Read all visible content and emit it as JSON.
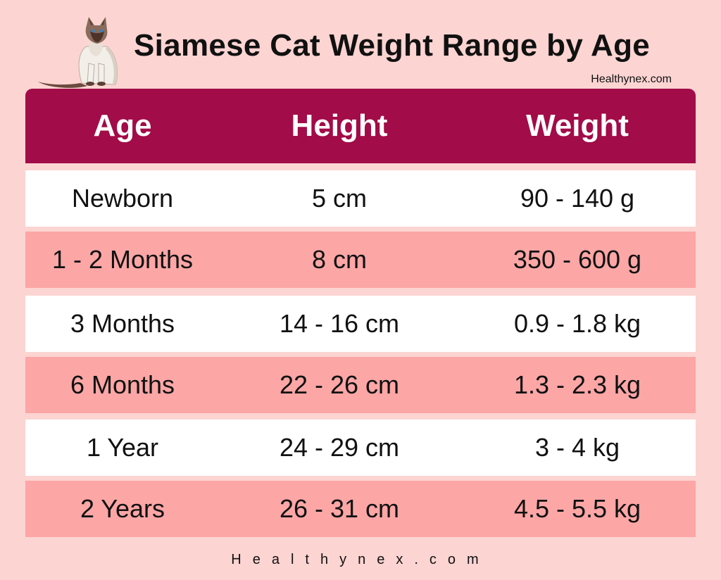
{
  "title": "Siamese Cat Weight Range by Age",
  "credit": "Healthynex.com",
  "table": {
    "headers": [
      "Age",
      "Height",
      "Weight"
    ],
    "rows": [
      [
        "Newborn",
        "5 cm",
        "90 - 140 g"
      ],
      [
        "1 - 2 Months",
        "8 cm",
        "350 - 600 g"
      ],
      [
        "3 Months",
        "14 - 16 cm",
        "0.9 - 1.8 kg"
      ],
      [
        "6 Months",
        "22 - 26 cm",
        "1.3 - 2.3 kg"
      ],
      [
        "1 Year",
        "24 - 29 cm",
        "3 - 4 kg"
      ],
      [
        "2 Years",
        "26 - 31 cm",
        "4.5 - 5.5 kg"
      ]
    ]
  },
  "footer": "Healthynex.com",
  "colors": {
    "background": "#fcd4d2",
    "header": "#a20c48",
    "row_white": "#ffffff",
    "row_pink": "#fca6a6"
  }
}
